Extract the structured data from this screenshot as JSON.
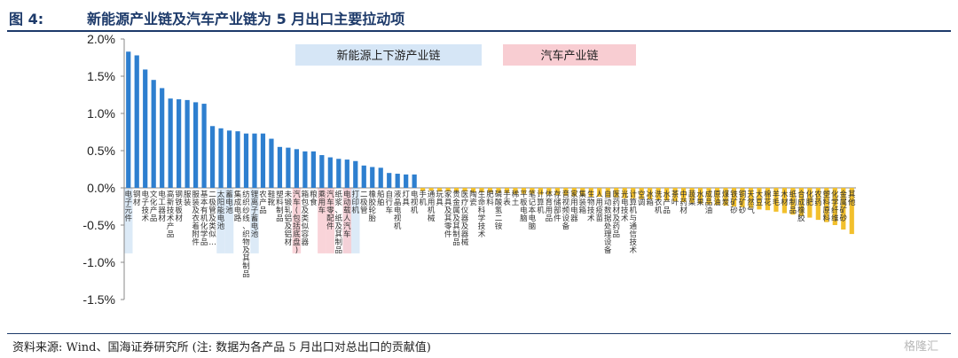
{
  "figure": {
    "label": "图 4:",
    "title": "新能源产业链及汽车产业链为 5 月出口主要拉动项",
    "source": "资料来源: Wind、国海证券研究所 (注: 数据为各产品 5 月出口对总出口的贡献值)",
    "watermark": "格隆汇"
  },
  "colors": {
    "bar": "#2e7fcf",
    "bar_negative": "#f2c02d",
    "highlight_new_energy": "#d6e6f6",
    "highlight_auto": "#f8cdd2",
    "title": "#1d3a6a",
    "axis": "#888888"
  },
  "chart_data": {
    "type": "bar",
    "ylim": [
      -1.5,
      2.0
    ],
    "yticks": [
      2.0,
      1.5,
      1.0,
      0.5,
      0.0,
      -0.5,
      -1.0,
      -1.5
    ],
    "ytick_labels": [
      "2.0%",
      "1.5%",
      "1.0%",
      "0.5%",
      "0.0%",
      "-0.5%",
      "-1.0%",
      "-1.5%"
    ],
    "legend": [
      {
        "label": "新能源上下游产业链",
        "color": "#d6e6f6"
      },
      {
        "label": "汽车产业链",
        "color": "#f8cdd2"
      }
    ],
    "legend_position": "top-center",
    "categories": [
      "电子元件",
      "钢材",
      "电子技术",
      "文化产品",
      "电工器材",
      "高新技术产品",
      "钢铁板材",
      "服装",
      "服装及衣着附件",
      "基本有机化学品",
      "二极管及类似…",
      "太阳能电池",
      "蓄电池",
      "集成电路",
      "纺织纱线、织物及其制品",
      "锂离子蓄电池",
      "农产品",
      "鞋靴",
      "塑料制品",
      "未锻轧铝及铝材",
      "汽车(包括底盘)",
      "箱包及类似容器",
      "粮食",
      "乘用车",
      "汽车零配件",
      "纸浆、纸及其制品",
      "电动载人汽车",
      "打印机",
      "二极管",
      "橡胶轮胎",
      "船舶",
      "自行车",
      "液晶电视机",
      "灯具",
      "电视机",
      "手机",
      "通用机械",
      "玩具",
      "家具及其零件",
      "贵金属及其制品",
      "医疗仪器及器械",
      "陶瓷",
      "生命科学技术",
      "肥料",
      "磷酸氢二铵",
      "手表",
      "稀土",
      "平板电脑",
      "笔记本电脑",
      "计算机",
      "体育用品",
      "存储部件",
      "音视频设备",
      "家用电器",
      "集装箱",
      "生物技术",
      "人用疫苗",
      "自动数据处理设备",
      "医药材及药品",
      "光电技术",
      "计算机与通信技术",
      "空调",
      "冰箱",
      "洗衣机",
      "水产品",
      "茶叶",
      "中药材",
      "蔬菜",
      "水果",
      "成品油",
      "原油",
      "煤炭",
      "铁矿砂",
      "铜矿砂",
      "天然气",
      "大豆",
      "棉花",
      "羊毛",
      "木材",
      "纸制品",
      "合成橡胶",
      "化肥",
      "农药",
      "塑料原料",
      "化学纤维",
      "金属矿砂",
      "其他"
    ],
    "values": [
      1.83,
      1.78,
      1.59,
      1.45,
      1.34,
      1.2,
      1.19,
      1.18,
      1.15,
      1.13,
      0.83,
      0.8,
      0.77,
      0.76,
      0.73,
      0.73,
      0.73,
      0.66,
      0.55,
      0.54,
      0.52,
      0.49,
      0.49,
      0.44,
      0.41,
      0.39,
      0.38,
      0.36,
      0.3,
      0.28,
      0.27,
      0.2,
      0.19,
      0.18,
      0.18,
      -0.04,
      -0.04,
      -0.05,
      -0.05,
      -0.05,
      -0.05,
      -0.06,
      -0.06,
      -0.06,
      -0.07,
      -0.07,
      -0.08,
      -0.08,
      -0.08,
      -0.09,
      -0.09,
      -0.1,
      -0.1,
      -0.11,
      -0.11,
      -0.12,
      -0.12,
      -0.13,
      -0.13,
      -0.14,
      -0.14,
      -0.15,
      -0.15,
      -0.16,
      -0.17,
      -0.18,
      -0.19,
      -0.2,
      -0.21,
      -0.22,
      -0.23,
      -0.24,
      -0.25,
      -0.26,
      -0.27,
      -0.29,
      -0.3,
      -0.32,
      -0.34,
      -0.36,
      -0.38,
      -0.4,
      -0.43,
      -0.46,
      -0.5,
      -0.56,
      -0.62
    ],
    "highlights": [
      {
        "group": "新能源上下游产业链",
        "indices": [
          0,
          11,
          12,
          15,
          26,
          27
        ]
      },
      {
        "group": "汽车产业链",
        "indices": [
          20,
          23,
          24,
          26
        ]
      }
    ]
  }
}
